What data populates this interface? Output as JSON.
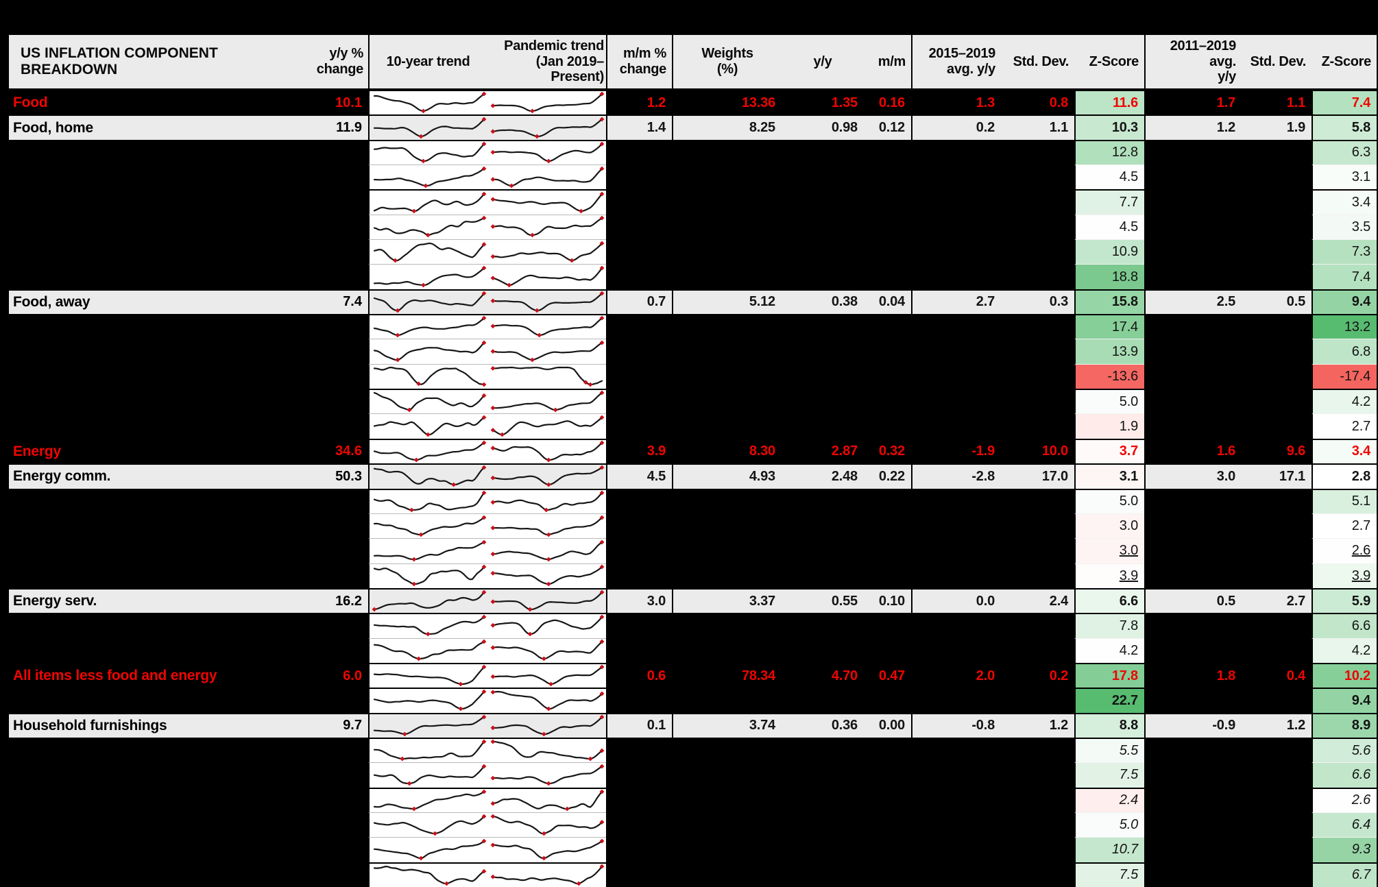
{
  "colors": {
    "page_bg": "#000000",
    "row_gray": "#ebebeb",
    "accent_red": "#ee0502",
    "z_green": "#57bb70",
    "z_red": "#f4645f",
    "marker_red": "#c8101a",
    "line_black": "#161616"
  },
  "chart_data": {
    "type": "table",
    "title": "US INFLATION COMPONENT BREAKDOWN",
    "legend_position": "none",
    "grid": "sections separated by black rules; redacted rows shown as black bars",
    "header": {
      "title": "US INFLATION COMPONENT BREAKDOWN",
      "yy_change": "y/y %\nchange",
      "trend_10yr": "10-year trend",
      "pandemic_trend": "Pandemic trend\n(Jan 2019–Present)",
      "mm_change": "m/m %\nchange",
      "weights": "Weights\n(%)",
      "yy": "y/y",
      "mm": "m/m",
      "avg_2015_2019": "2015–2019\navg. y/y",
      "std_dev_1": "Std. Dev.",
      "z_score_1": "Z-Score",
      "avg_2011_2019": "2011–2019 avg.\ny/y",
      "std_dev_2": "Std. Dev.",
      "z_score_2": "Z-Score"
    },
    "columns": [
      "Component",
      "y/y % change",
      "10-year trend",
      "Pandemic trend (Jan 2019–Present)",
      "m/m % change",
      "Weights (%)",
      "y/y",
      "m/m",
      "2015–2019 avg. y/y",
      "Std. Dev.",
      "Z-Score",
      "2011–2019 avg. y/y",
      "Std. Dev.",
      "Z-Score"
    ],
    "z_scales": {
      "left": {
        "mid": 4.3,
        "max": 22.7,
        "min": -14.0
      },
      "right": {
        "mid": 2.75,
        "max": 13.2,
        "min": -17.5
      }
    },
    "sparkline_note": "Each row has two small black line charts (10-year trend, pandemic trend) with red diamond markers at the pandemic dip and latest value; shapes are qualitative.",
    "rows": [
      {
        "label": "Food",
        "type": "section",
        "yy": "10.1",
        "mm": "1.2",
        "w": "13.36",
        "yoy": "1.35",
        "mom": "0.16",
        "a15": "1.3",
        "s15": "0.8",
        "z15": "11.6",
        "a11": "1.7",
        "s11": "1.1",
        "z11": "7.4",
        "spark": {
          "l": {
            "v": 0.3,
            "d": 0.42,
            "e": "up"
          },
          "r": {
            "v": 0.22,
            "d": 0.35,
            "e": "up"
          }
        }
      },
      {
        "label": "Food, home",
        "type": "visible",
        "yy": "11.9",
        "mm": "1.4",
        "w": "8.25",
        "yoy": "0.98",
        "mom": "0.12",
        "a15": "0.2",
        "s15": "1.1",
        "z15": "10.3",
        "a11": "1.2",
        "s11": "1.9",
        "z11": "5.8",
        "spark": {
          "l": {
            "v": 0.3,
            "d": 0.42,
            "e": "up"
          },
          "r": {
            "v": 0.24,
            "d": 0.4,
            "e": "up"
          }
        }
      },
      {
        "type": "hidden",
        "z15": "12.8",
        "z11": "6.3",
        "spark": {
          "l": {
            "v": 0.35,
            "d": 0.42,
            "e": "up"
          },
          "r": {
            "v": 0.25,
            "d": 0.5,
            "e": "up"
          }
        }
      },
      {
        "type": "hidden",
        "z15": "4.5",
        "z11": "3.1",
        "spark": {
          "l": {
            "v": 0.5,
            "d": 0.45,
            "e": "up"
          },
          "r": {
            "v": 0.35,
            "d": 0.15,
            "e": "up"
          }
        }
      },
      {
        "type": "hidden",
        "group": true,
        "z15": "7.7",
        "z11": "3.4",
        "spark": {
          "l": {
            "v": 0.55,
            "d": 0.38,
            "e": "up"
          },
          "r": {
            "v": 0.3,
            "d": 0.8,
            "e": "up"
          }
        }
      },
      {
        "type": "hidden",
        "z15": "4.5",
        "z11": "3.5",
        "spark": {
          "l": {
            "v": 1.1,
            "d": 0.5,
            "e": "up"
          },
          "r": {
            "v": 0.4,
            "d": 0.35,
            "e": "up"
          }
        }
      },
      {
        "type": "hidden",
        "z15": "10.9",
        "z11": "7.3",
        "spark": {
          "l": {
            "v": 0.45,
            "d": 0.2,
            "e": "up"
          },
          "r": {
            "v": 0.35,
            "d": 0.7,
            "e": "up"
          }
        }
      },
      {
        "type": "hidden",
        "z15": "18.8",
        "z11": "7.4",
        "spark": {
          "l": {
            "v": 0.4,
            "d": 0.45,
            "e": "up"
          },
          "r": {
            "v": 0.3,
            "d": 0.15,
            "e": "up"
          }
        }
      },
      {
        "label": "Food, away",
        "type": "visible",
        "yy": "7.4",
        "mm": "0.7",
        "w": "5.12",
        "yoy": "0.38",
        "mom": "0.04",
        "a15": "2.7",
        "s15": "0.3",
        "z15": "15.8",
        "a11": "2.5",
        "s11": "0.5",
        "z11": "9.4",
        "spark": {
          "l": {
            "v": 0.28,
            "d": 0.2,
            "e": "up"
          },
          "r": {
            "v": 0.2,
            "d": 0.4,
            "e": "up"
          }
        }
      },
      {
        "type": "hidden",
        "z15": "17.4",
        "z11": "13.2",
        "spark": {
          "l": {
            "v": 0.3,
            "d": 0.22,
            "e": "up"
          },
          "r": {
            "v": 0.25,
            "d": 0.42,
            "e": "up"
          }
        }
      },
      {
        "type": "hidden",
        "z15": "13.9",
        "z11": "6.8",
        "spark": {
          "l": {
            "v": 0.35,
            "d": 0.2,
            "e": "up"
          },
          "r": {
            "v": 0.3,
            "d": 0.35,
            "e": "up"
          }
        }
      },
      {
        "type": "hidden",
        "z15": "-13.6",
        "z11": "-17.4",
        "spark": {
          "l": {
            "v": 0.3,
            "d": 0.4,
            "e": "down"
          },
          "r": {
            "v": 0.25,
            "d": 0.85,
            "e": "down"
          }
        }
      },
      {
        "type": "hidden",
        "group": true,
        "z15": "5.0",
        "z11": "4.2",
        "spark": {
          "l": {
            "v": 0.8,
            "d": 0.3,
            "e": "up"
          },
          "r": {
            "v": 0.5,
            "d": 0.55,
            "e": "up"
          }
        }
      },
      {
        "type": "hidden",
        "z15": "1.9",
        "z11": "2.7",
        "spark": {
          "l": {
            "v": 1.2,
            "d": 0.5,
            "e": "up"
          },
          "r": {
            "v": 0.6,
            "d": 0.08,
            "e": "up"
          }
        }
      },
      {
        "label": "Energy",
        "type": "section",
        "yy": "34.6",
        "mm": "3.9",
        "w": "8.30",
        "yoy": "2.87",
        "mom": "0.32",
        "a15": "-1.9",
        "s15": "10.0",
        "z15": "3.7",
        "a11": "1.6",
        "s11": "9.6",
        "z11": "3.4",
        "spark": {
          "l": {
            "v": 0.85,
            "d": 0.38,
            "e": "up"
          },
          "r": {
            "v": 0.5,
            "d": 0.5,
            "e": "up"
          }
        }
      },
      {
        "label": "Energy comm.",
        "type": "visible",
        "yy": "50.3",
        "mm": "4.5",
        "w": "4.93",
        "yoy": "2.48",
        "mom": "0.22",
        "a15": "-2.8",
        "s15": "17.0",
        "z15": "3.1",
        "a11": "3.0",
        "s11": "17.1",
        "z11": "2.8",
        "spark": {
          "l": {
            "v": 0.85,
            "d": 0.38,
            "e": "up"
          },
          "r": {
            "v": 0.5,
            "d": 0.5,
            "e": "up"
          }
        }
      },
      {
        "type": "hidden",
        "z15": "5.0",
        "z11": "5.1",
        "spark": {
          "l": {
            "v": 0.7,
            "d": 0.38,
            "e": "up"
          },
          "r": {
            "v": 0.45,
            "d": 0.5,
            "e": "up"
          }
        }
      },
      {
        "type": "hidden",
        "z15": "3.0",
        "z11": "2.7",
        "spark": {
          "l": {
            "v": 0.75,
            "d": 0.38,
            "e": "up"
          },
          "r": {
            "v": 0.45,
            "d": 0.5,
            "e": "up"
          }
        }
      },
      {
        "type": "hidden",
        "zstyle": "underline",
        "z15": "3.0",
        "z11": "2.6",
        "spark": {
          "l": {
            "v": 0.8,
            "d": 0.38,
            "e": "up"
          },
          "r": {
            "v": 0.5,
            "d": 0.5,
            "e": "up"
          }
        }
      },
      {
        "type": "hidden",
        "zstyle": "underline",
        "z15": "3.9",
        "z11": "3.9",
        "spark": {
          "l": {
            "v": 0.6,
            "d": 0.4,
            "e": "up"
          },
          "r": {
            "v": 0.4,
            "d": 0.5,
            "e": "up"
          }
        }
      },
      {
        "label": "Energy serv.",
        "type": "visible",
        "yy": "16.2",
        "mm": "3.0",
        "w": "3.37",
        "yoy": "0.55",
        "mom": "0.10",
        "a15": "0.0",
        "s15": "2.4",
        "z15": "6.6",
        "a11": "0.5",
        "s11": "2.7",
        "z11": "5.9",
        "spark": {
          "l": {
            "v": 0.45,
            "d": 0.5,
            "e": "up"
          },
          "r": {
            "v": 0.3,
            "d": 0.35,
            "e": "up"
          }
        }
      },
      {
        "type": "hidden",
        "z15": "7.8",
        "z11": "6.6",
        "spark": {
          "l": {
            "v": 0.5,
            "d": 0.5,
            "e": "up"
          },
          "r": {
            "v": 0.3,
            "d": 0.35,
            "e": "up"
          }
        }
      },
      {
        "type": "hidden",
        "z15": "4.2",
        "z11": "4.2",
        "spark": {
          "l": {
            "v": 0.55,
            "d": 0.4,
            "e": "up"
          },
          "r": {
            "v": 0.35,
            "d": 0.45,
            "e": "up"
          }
        }
      },
      {
        "label": "All items less food and energy",
        "type": "section",
        "yy": "6.0",
        "mm": "0.6",
        "w": "78.34",
        "yoy": "4.70",
        "mom": "0.47",
        "a15": "2.0",
        "s15": "0.2",
        "z15": "17.8",
        "a11": "1.8",
        "s11": "0.4",
        "z11": "10.2",
        "spark": {
          "l": {
            "v": 0.25,
            "d": 0.78,
            "e": "up",
            "eu": 2.2
          },
          "r": {
            "v": 0.22,
            "d": 0.52,
            "e": "up"
          }
        }
      },
      {
        "type": "hidden",
        "zstyle": "bold",
        "z15": "22.7",
        "z11": "9.4",
        "spark": {
          "l": {
            "v": 0.25,
            "d": 0.78,
            "e": "up",
            "eu": 2.2
          },
          "r": {
            "v": 0.25,
            "d": 0.5,
            "e": "up"
          }
        }
      },
      {
        "label": "Household furnishings",
        "type": "visible",
        "yy": "9.7",
        "mm": "0.1",
        "w": "3.74",
        "yoy": "0.36",
        "mom": "0.00",
        "a15": "-0.8",
        "s15": "1.2",
        "z15": "8.8",
        "a11": "-0.9",
        "s11": "1.2",
        "z11": "8.9",
        "spark": {
          "l": {
            "v": 0.3,
            "d": 0.28,
            "e": "up"
          },
          "r": {
            "v": 0.3,
            "d": 0.45,
            "e": "up"
          }
        }
      },
      {
        "type": "hidden",
        "zstyle": "italic",
        "z15": "5.5",
        "z11": "5.6",
        "spark": {
          "l": {
            "v": 1.0,
            "d": 0.45,
            "e": "up"
          },
          "r": {
            "v": 0.55,
            "d": 0.3,
            "e": "up"
          }
        }
      },
      {
        "type": "hidden",
        "zstyle": "italic",
        "z15": "7.5",
        "z11": "6.6",
        "spark": {
          "l": {
            "v": 0.35,
            "d": 0.3,
            "e": "up"
          },
          "r": {
            "v": 0.35,
            "d": 0.5,
            "e": "up"
          }
        }
      },
      {
        "type": "hidden",
        "group": true,
        "zstyle": "italic",
        "z15": "2.4",
        "z11": "2.6",
        "spark": {
          "l": {
            "v": 0.8,
            "d": 0.3,
            "e": "up"
          },
          "r": {
            "v": 0.7,
            "d": 0.4,
            "e": "up"
          }
        }
      },
      {
        "type": "hidden",
        "zstyle": "italic",
        "z15": "5.0",
        "z11": "6.4",
        "spark": {
          "l": {
            "v": 0.5,
            "d": 0.55,
            "e": "up"
          },
          "r": {
            "v": 0.4,
            "d": 0.45,
            "e": "up"
          }
        }
      },
      {
        "type": "hidden",
        "zstyle": "italic",
        "z15": "10.7",
        "z11": "9.3",
        "spark": {
          "l": {
            "v": 0.5,
            "d": 0.4,
            "e": "up"
          },
          "r": {
            "v": 0.4,
            "d": 0.45,
            "e": "up"
          }
        }
      },
      {
        "type": "hidden",
        "group": true,
        "zstyle": "italic",
        "z15": "7.5",
        "z11": "6.7",
        "spark": {
          "l": {
            "v": 0.7,
            "d": 0.6,
            "e": "up"
          },
          "r": {
            "v": 0.5,
            "d": 0.75,
            "e": "up"
          }
        }
      }
    ]
  }
}
